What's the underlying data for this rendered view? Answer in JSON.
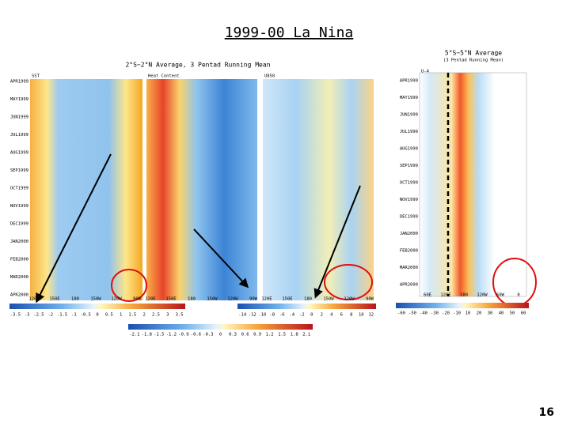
{
  "title": "1999-00 La Nina",
  "page_number": "16",
  "left_figure": {
    "heading": "2°S−2°N Average, 3 Pentad Running Mean",
    "panels": [
      "SST",
      "Heat Content",
      "U850"
    ],
    "dates": [
      "APR1999",
      "MAY1999",
      "JUN1999",
      "JUL1999",
      "AUG1999",
      "SEP1999",
      "OCT1999",
      "NOV1999",
      "DEC1999",
      "JAN2000",
      "FEB2000",
      "MAR2000",
      "APR2000"
    ],
    "longitudes": [
      "120E",
      "150E",
      "180",
      "150W",
      "120W",
      "90W"
    ],
    "sst_colorbar": [
      "-3.5",
      "-3",
      "-2.5",
      "-2",
      "-1.5",
      "-1",
      "-0.5",
      "0",
      "0.5",
      "1",
      "1.5",
      "2",
      "2.5",
      "3",
      "3.5"
    ],
    "u850_colorbar": [
      "-14",
      "-12",
      "-10",
      "-8",
      "-6",
      "-4",
      "-2",
      "0",
      "2",
      "4",
      "6",
      "8",
      "10",
      "12"
    ],
    "heat_content_colorbar": [
      "-2.1",
      "-1.8",
      "-1.5",
      "-1.2",
      "-0.9",
      "-0.6",
      "-0.3",
      "0",
      "0.3",
      "0.6",
      "0.9",
      "1.2",
      "1.5",
      "1.8",
      "2.1"
    ]
  },
  "right_figure": {
    "heading": "5°S−5°N Average",
    "subheading": "(3 Pentad Running Mean)",
    "panel": "U-4",
    "dates": [
      "APR1999",
      "MAY1999",
      "JUN1999",
      "JUL1999",
      "AUG1999",
      "SEP1999",
      "OCT1999",
      "NOV1999",
      "DEC1999",
      "JAN2000",
      "FEB2000",
      "MAR2000",
      "APR2000"
    ],
    "longitudes": [
      "60E",
      "120E",
      "180",
      "120W",
      "60W",
      "0"
    ],
    "colorbar": [
      "-60",
      "-50",
      "-40",
      "-30",
      "-20",
      "-10",
      "10",
      "20",
      "30",
      "40",
      "50",
      "60"
    ]
  }
}
